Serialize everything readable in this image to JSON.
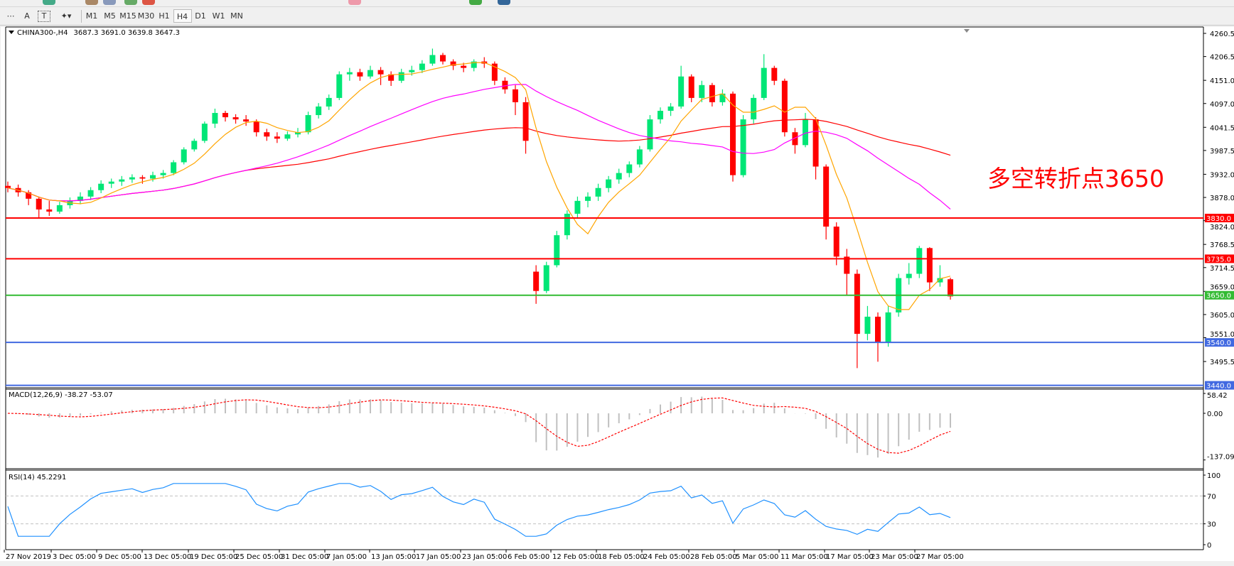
{
  "toolbar": {
    "timeframes": [
      "M1",
      "M5",
      "M15",
      "M30",
      "H1",
      "H4",
      "D1",
      "W1",
      "MN"
    ],
    "active_timeframe": "H4",
    "text_tool": "A",
    "label_tool": "T"
  },
  "chart_header": {
    "symbol": "CHINA300-,H4",
    "ohlc": "3687.3 3691.0 3639.8 3647.3"
  },
  "annotation": {
    "text": "多空转折点3650",
    "color": "#ff0000"
  },
  "chart_data": {
    "type": "candlestick",
    "colors": {
      "up": "#00e676",
      "down": "#ff0000",
      "ma_fast": "#ffa500",
      "ma_mid": "#ff00ff",
      "ma_slow": "#ff0000"
    },
    "ohlc": [
      [
        3905,
        3915,
        3890,
        3900
      ],
      [
        3900,
        3908,
        3880,
        3890
      ],
      [
        3890,
        3895,
        3860,
        3875
      ],
      [
        3875,
        3880,
        3830,
        3850
      ],
      [
        3850,
        3870,
        3835,
        3845
      ],
      [
        3845,
        3868,
        3840,
        3860
      ],
      [
        3860,
        3878,
        3852,
        3870
      ],
      [
        3870,
        3890,
        3862,
        3880
      ],
      [
        3880,
        3902,
        3872,
        3895
      ],
      [
        3895,
        3918,
        3888,
        3910
      ],
      [
        3910,
        3922,
        3900,
        3915
      ],
      [
        3915,
        3928,
        3905,
        3920
      ],
      [
        3920,
        3932,
        3912,
        3925
      ],
      [
        3925,
        3930,
        3910,
        3922
      ],
      [
        3922,
        3938,
        3915,
        3930
      ],
      [
        3930,
        3942,
        3922,
        3935
      ],
      [
        3935,
        3965,
        3930,
        3960
      ],
      [
        3960,
        3995,
        3955,
        3990
      ],
      [
        3990,
        4015,
        3985,
        4010
      ],
      [
        4010,
        4055,
        4005,
        4050
      ],
      [
        4050,
        4085,
        4040,
        4075
      ],
      [
        4075,
        4080,
        4055,
        4065
      ],
      [
        4065,
        4072,
        4050,
        4060
      ],
      [
        4060,
        4070,
        4045,
        4055
      ],
      [
        4055,
        4060,
        4020,
        4030
      ],
      [
        4030,
        4038,
        4010,
        4020
      ],
      [
        4020,
        4030,
        4005,
        4015
      ],
      [
        4015,
        4032,
        4010,
        4025
      ],
      [
        4025,
        4040,
        4018,
        4030
      ],
      [
        4030,
        4078,
        4025,
        4070
      ],
      [
        4070,
        4098,
        4062,
        4090
      ],
      [
        4090,
        4118,
        4082,
        4110
      ],
      [
        4110,
        4172,
        4105,
        4165
      ],
      [
        4165,
        4180,
        4150,
        4170
      ],
      [
        4170,
        4178,
        4150,
        4160
      ],
      [
        4160,
        4185,
        4155,
        4175
      ],
      [
        4175,
        4182,
        4140,
        4165
      ],
      [
        4165,
        4172,
        4138,
        4150
      ],
      [
        4150,
        4178,
        4145,
        4170
      ],
      [
        4170,
        4185,
        4162,
        4175
      ],
      [
        4175,
        4198,
        4168,
        4190
      ],
      [
        4190,
        4225,
        4185,
        4210
      ],
      [
        4210,
        4215,
        4188,
        4195
      ],
      [
        4195,
        4200,
        4175,
        4185
      ],
      [
        4185,
        4192,
        4170,
        4180
      ],
      [
        4180,
        4200,
        4172,
        4195
      ],
      [
        4195,
        4205,
        4180,
        4190
      ],
      [
        4190,
        4195,
        4140,
        4150
      ],
      [
        4150,
        4158,
        4120,
        4130
      ],
      [
        4130,
        4140,
        4070,
        4100
      ],
      [
        4100,
        4112,
        3980,
        4010
      ],
      [
        3705,
        3720,
        3630,
        3660
      ],
      [
        3660,
        3728,
        3655,
        3720
      ],
      [
        3720,
        3800,
        3715,
        3790
      ],
      [
        3790,
        3848,
        3780,
        3840
      ],
      [
        3840,
        3880,
        3830,
        3870
      ],
      [
        3870,
        3890,
        3855,
        3880
      ],
      [
        3880,
        3910,
        3870,
        3900
      ],
      [
        3900,
        3928,
        3890,
        3920
      ],
      [
        3920,
        3945,
        3910,
        3935
      ],
      [
        3935,
        3962,
        3925,
        3955
      ],
      [
        3955,
        3998,
        3948,
        3990
      ],
      [
        3990,
        4070,
        3985,
        4060
      ],
      [
        4060,
        4088,
        4050,
        4080
      ],
      [
        4080,
        4098,
        4068,
        4090
      ],
      [
        4090,
        4185,
        4085,
        4160
      ],
      [
        4160,
        4165,
        4100,
        4110
      ],
      [
        4110,
        4150,
        4100,
        4140
      ],
      [
        4140,
        4145,
        4090,
        4100
      ],
      [
        4100,
        4130,
        4092,
        4120
      ],
      [
        4120,
        4125,
        3915,
        3930
      ],
      [
        3930,
        4070,
        3925,
        4060
      ],
      [
        4060,
        4118,
        4050,
        4110
      ],
      [
        4110,
        4212,
        4105,
        4180
      ],
      [
        4180,
        4185,
        4140,
        4150
      ],
      [
        4150,
        4155,
        4020,
        4030
      ],
      [
        4030,
        4040,
        3980,
        4000
      ],
      [
        4000,
        4075,
        3995,
        4060
      ],
      [
        4060,
        4065,
        3920,
        3950
      ],
      [
        3950,
        3955,
        3780,
        3810
      ],
      [
        3810,
        3820,
        3720,
        3740
      ],
      [
        3740,
        3758,
        3650,
        3700
      ],
      [
        3700,
        3710,
        3480,
        3560
      ],
      [
        3560,
        3625,
        3545,
        3600
      ],
      [
        3600,
        3610,
        3495,
        3540
      ],
      [
        3540,
        3625,
        3530,
        3610
      ],
      [
        3610,
        3700,
        3600,
        3690
      ],
      [
        3690,
        3725,
        3675,
        3700
      ],
      [
        3700,
        3765,
        3690,
        3760
      ],
      [
        3760,
        3762,
        3660,
        3680
      ],
      [
        3680,
        3720,
        3670,
        3690
      ],
      [
        3687.3,
        3691.0,
        3639.8,
        3647.3
      ]
    ],
    "x_tick_labels": [
      "27 Nov 2019",
      "3 Dec 05:00",
      "9 Dec 05:00",
      "13 Dec 05:00",
      "19 Dec 05:00",
      "25 Dec 05:00",
      "31 Dec 05:00",
      "7 Jan 05:00",
      "13 Jan 05:00",
      "17 Jan 05:00",
      "23 Jan 05:00",
      "6 Feb 05:00",
      "12 Feb 05:00",
      "18 Feb 05:00",
      "24 Feb 05:00",
      "28 Feb 05:00",
      "5 Mar 05:00",
      "11 Mar 05:00",
      "17 Mar 05:00",
      "23 Mar 05:00",
      "27 Mar 05:00"
    ],
    "y_tick_labels": [
      "4260.5",
      "4206.5",
      "4151.0",
      "4097.0",
      "4041.5",
      "3987.5",
      "3932.0",
      "3878.0",
      "3824.0",
      "3768.5",
      "3714.5",
      "3659.0",
      "3605.0",
      "3551.0",
      "3495.5"
    ],
    "ylim": [
      3440,
      4270
    ],
    "levels": [
      {
        "value": 3830.0,
        "label": "3830.0",
        "color": "#ff0000"
      },
      {
        "value": 3735.0,
        "label": "3735.0",
        "color": "#ff0000"
      },
      {
        "value": 3650.0,
        "label": "3650.0",
        "color": "#33bb33"
      },
      {
        "value": 3540.0,
        "label": "3540.0",
        "color": "#4169e1"
      },
      {
        "value": 3440.0,
        "label": "3440.0",
        "color": "#4169e1"
      }
    ],
    "macd": {
      "label": "MACD(12,26,9) -38.27 -53.07",
      "ticks": [
        "58.42",
        "0.00",
        "-137.09"
      ],
      "ylim": [
        -137.09,
        58.42
      ]
    },
    "rsi": {
      "label": "RSI(14) 45.2291",
      "ticks": [
        "100",
        "70",
        "30",
        "0"
      ],
      "levels": [
        70,
        30
      ],
      "ylim": [
        0,
        100
      ]
    }
  }
}
